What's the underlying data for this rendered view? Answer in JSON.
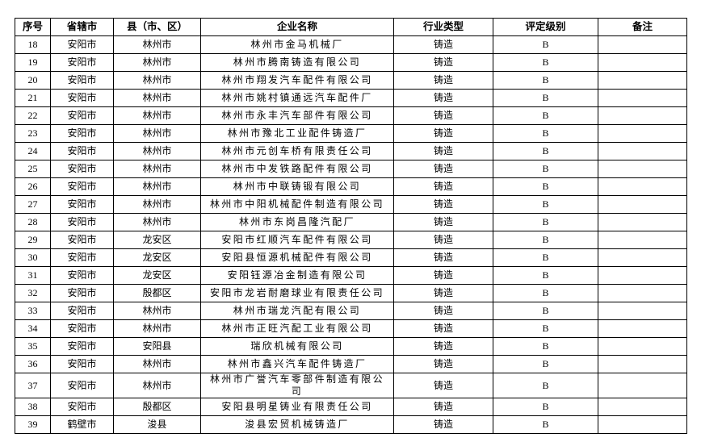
{
  "table": {
    "header": [
      "序号",
      "省辖市",
      "县（市、区）",
      "企业名称",
      "行业类型",
      "评定级别",
      "备注"
    ],
    "rows": [
      [
        "18",
        "安阳市",
        "林州市",
        "林州市金马机械厂",
        "铸造",
        "B"
      ],
      [
        "19",
        "安阳市",
        "林州市",
        "林州市腾南铸造有限公司",
        "铸造",
        "B"
      ],
      [
        "20",
        "安阳市",
        "林州市",
        "林州市翔发汽车配件有限公司",
        "铸造",
        "B"
      ],
      [
        "21",
        "安阳市",
        "林州市",
        "林州市姚村镇通远汽车配件厂",
        "铸造",
        "B"
      ],
      [
        "22",
        "安阳市",
        "林州市",
        "林州市永丰汽车部件有限公司",
        "铸造",
        "B"
      ],
      [
        "23",
        "安阳市",
        "林州市",
        "林州市豫北工业配件铸造厂",
        "铸造",
        "B"
      ],
      [
        "24",
        "安阳市",
        "林州市",
        "林州市元创车桥有限责任公司",
        "铸造",
        "B"
      ],
      [
        "25",
        "安阳市",
        "林州市",
        "林州市中发铁路配件有限公司",
        "铸造",
        "B"
      ],
      [
        "26",
        "安阳市",
        "林州市",
        "林州市中联铸锻有限公司",
        "铸造",
        "B"
      ],
      [
        "27",
        "安阳市",
        "林州市",
        "林州市中阳机械配件制造有限公司",
        "铸造",
        "B"
      ],
      [
        "28",
        "安阳市",
        "林州市",
        "林州市东岗昌隆汽配厂",
        "铸造",
        "B"
      ],
      [
        "29",
        "安阳市",
        "龙安区",
        "安阳市红顺汽车配件有限公司",
        "铸造",
        "B"
      ],
      [
        "30",
        "安阳市",
        "龙安区",
        "安阳县恒源机械配件有限公司",
        "铸造",
        "B"
      ],
      [
        "31",
        "安阳市",
        "龙安区",
        "安阳钰源冶金制造有限公司",
        "铸造",
        "B"
      ],
      [
        "32",
        "安阳市",
        "殷都区",
        "安阳市龙岩耐磨球业有限责任公司",
        "铸造",
        "B"
      ],
      [
        "33",
        "安阳市",
        "林州市",
        "林州市瑞龙汽配有限公司",
        "铸造",
        "B"
      ],
      [
        "34",
        "安阳市",
        "林州市",
        "林州市正旺汽配工业有限公司",
        "铸造",
        "B"
      ],
      [
        "35",
        "安阳市",
        "安阳县",
        "瑞欣机械有限公司",
        "铸造",
        "B"
      ],
      [
        "36",
        "安阳市",
        "林州市",
        "林州市鑫兴汽车配件铸造厂",
        "铸造",
        "B"
      ],
      [
        "37",
        "安阳市",
        "林州市",
        "林州市广誉汽车零部件制造有限公司",
        "铸造",
        "B"
      ],
      [
        "38",
        "安阳市",
        "殷都区",
        "安阳县明星铸业有限责任公司",
        "铸造",
        "B"
      ],
      [
        "39",
        "鹤壁市",
        "浚县",
        "浚县宏贸机械铸造厂",
        "铸造",
        "B"
      ]
    ]
  }
}
